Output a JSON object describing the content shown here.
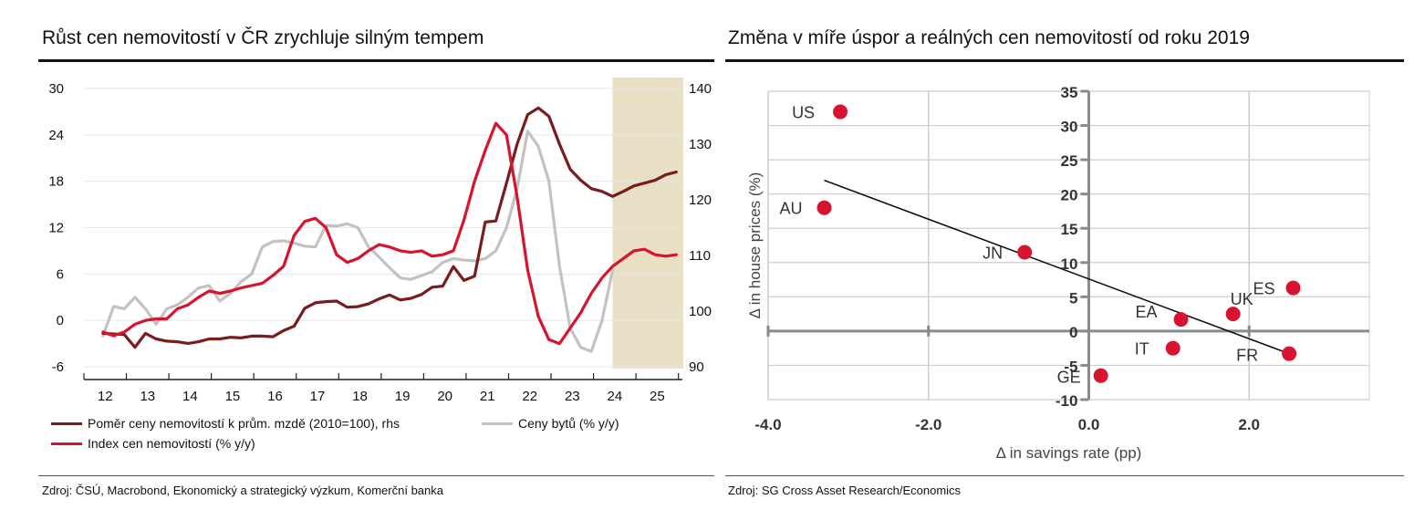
{
  "left": {
    "title": "Růst cen nemovitostí v ČR zrychluje silným tempem",
    "source": "Zdroj: ČSÚ, Macrobond, Ekonomický a strategický výzkum, Komerční banka"
  },
  "right": {
    "title": "Změna v míře úspor a reálných cen nemovitostí od roku 2019",
    "source": "Zdroj: SG Cross Asset Research/Economics"
  },
  "colors": {
    "ratio": "#7b1c1c",
    "flats": "#c4c1c0",
    "index": "#d7132f",
    "forecast": "#e9dfc5",
    "dot": "#d7132f",
    "grid": "#cccccc",
    "axis": "#8a8a8a"
  },
  "chart_data": [
    {
      "type": "line",
      "title": "Růst cen nemovitostí v ČR zrychluje silným tempem",
      "x_ticks": [
        "12",
        "13",
        "14",
        "15",
        "16",
        "17",
        "18",
        "19",
        "20",
        "21",
        "22",
        "23",
        "24",
        "25"
      ],
      "ylim_left": [
        -6,
        30
      ],
      "yticks_left": [
        -6,
        0,
        6,
        12,
        18,
        24,
        30
      ],
      "ylim_right": [
        90,
        140
      ],
      "yticks_right": [
        90,
        100,
        110,
        120,
        130,
        140
      ],
      "forecast_band_start": 2024.0,
      "series": [
        {
          "name": "Poměr ceny nemovitostí k prům. mzdě (2010=100), rhs",
          "axis": "right",
          "x": [
            2012.0,
            2012.5,
            2012.75,
            2013.0,
            2013.25,
            2013.5,
            2013.75,
            2014.0,
            2014.25,
            2014.5,
            2014.75,
            2015.0,
            2015.25,
            2015.5,
            2015.75,
            2016.0,
            2016.25,
            2016.5,
            2016.75,
            2017.0,
            2017.25,
            2017.5,
            2017.75,
            2018.0,
            2018.25,
            2018.5,
            2018.75,
            2019.0,
            2019.25,
            2019.5,
            2019.75,
            2020.0,
            2020.25,
            2020.5,
            2020.75,
            2021.0,
            2021.25,
            2021.5,
            2021.75,
            2022.0,
            2022.25,
            2022.5,
            2022.75,
            2023.0,
            2023.25,
            2023.5,
            2023.75,
            2024.0,
            2024.25,
            2024.5,
            2024.75,
            2025.0,
            2025.25,
            2025.5
          ],
          "values": [
            96.0,
            95.8,
            93.5,
            96.0,
            95.0,
            94.6,
            94.5,
            94.2,
            94.5,
            95.0,
            95.0,
            95.3,
            95.2,
            95.5,
            95.5,
            95.4,
            96.5,
            97.3,
            100.5,
            101.5,
            101.7,
            101.8,
            100.7,
            100.8,
            101.3,
            102.2,
            102.9,
            102.0,
            102.3,
            103.0,
            104.3,
            104.5,
            108.0,
            105.5,
            106.3,
            116.0,
            116.2,
            123.0,
            130.0,
            135.3,
            136.5,
            135.0,
            130.0,
            125.5,
            123.5,
            122.0,
            121.5,
            120.6,
            121.5,
            122.5,
            123.0,
            123.5,
            124.5,
            125.0
          ]
        },
        {
          "name": "Ceny bytů (% y/y)",
          "axis": "left",
          "x": [
            2012.0,
            2012.25,
            2012.5,
            2012.75,
            2013.0,
            2013.25,
            2013.5,
            2013.75,
            2014.0,
            2014.25,
            2014.5,
            2014.75,
            2015.0,
            2015.25,
            2015.5,
            2015.75,
            2016.0,
            2016.25,
            2016.5,
            2016.75,
            2017.0,
            2017.25,
            2017.5,
            2017.75,
            2018.0,
            2018.25,
            2018.5,
            2018.75,
            2019.0,
            2019.25,
            2019.5,
            2019.75,
            2020.0,
            2020.25,
            2020.5,
            2020.75,
            2021.0,
            2021.25,
            2021.5,
            2021.75,
            2022.0,
            2022.25,
            2022.5,
            2022.75,
            2023.0,
            2023.25,
            2023.5,
            2023.75,
            2024.0
          ],
          "values": [
            -2.0,
            1.8,
            1.5,
            3.0,
            1.5,
            -0.5,
            1.5,
            2.0,
            3.0,
            4.2,
            4.5,
            2.5,
            3.5,
            5.0,
            6.0,
            9.5,
            10.2,
            10.3,
            10.0,
            9.6,
            9.5,
            12.3,
            12.2,
            12.5,
            12.0,
            9.5,
            8.2,
            6.8,
            5.5,
            5.3,
            5.8,
            6.3,
            7.5,
            8.0,
            7.8,
            7.7,
            8.0,
            9.0,
            12.0,
            17.0,
            24.5,
            22.5,
            18.0,
            7.0,
            -1.0,
            -3.5,
            -4.0,
            0.0,
            6.5
          ]
        },
        {
          "name": "Index cen nemovitostí (% y/y)",
          "axis": "left",
          "x": [
            2012.0,
            2012.25,
            2012.5,
            2012.75,
            2013.0,
            2013.25,
            2013.5,
            2013.75,
            2014.0,
            2014.25,
            2014.5,
            2014.75,
            2015.0,
            2015.25,
            2015.5,
            2015.75,
            2016.0,
            2016.25,
            2016.5,
            2016.75,
            2017.0,
            2017.25,
            2017.5,
            2017.75,
            2018.0,
            2018.25,
            2018.5,
            2018.75,
            2019.0,
            2019.25,
            2019.5,
            2019.75,
            2020.0,
            2020.25,
            2020.5,
            2020.75,
            2021.0,
            2021.25,
            2021.5,
            2021.75,
            2022.0,
            2022.25,
            2022.5,
            2022.75,
            2023.0,
            2023.25,
            2023.5,
            2023.75,
            2024.0,
            2024.25,
            2024.5,
            2024.75,
            2025.0,
            2025.25,
            2025.5
          ],
          "values": [
            -1.5,
            -2.0,
            -1.5,
            -0.5,
            0.0,
            0.2,
            0.2,
            1.5,
            2.0,
            3.0,
            3.8,
            3.5,
            3.8,
            4.2,
            4.5,
            4.8,
            5.8,
            7.0,
            11.0,
            12.8,
            13.2,
            12.0,
            8.5,
            7.5,
            8.0,
            9.0,
            9.8,
            9.5,
            9.0,
            8.8,
            9.0,
            8.3,
            8.5,
            9.0,
            13.0,
            18.0,
            22.0,
            25.5,
            24.0,
            16.0,
            6.5,
            0.5,
            -2.5,
            -3.0,
            -1.0,
            1.0,
            3.5,
            5.5,
            7.0,
            8.0,
            9.0,
            9.2,
            8.5,
            8.3,
            8.5
          ]
        }
      ]
    },
    {
      "type": "scatter",
      "title": "Změna v míře úspor a reálných cen nemovitostí od roku 2019",
      "xlabel": "Δ in savings rate (pp)",
      "ylabel": "Δ in house prices (%)",
      "xlim": [
        -4.0,
        3.5
      ],
      "ylim": [
        -10,
        35
      ],
      "xticks": [
        "-4.0",
        "-2.0",
        "0.0",
        "2.0"
      ],
      "yticks": [
        "35",
        "30",
        "25",
        "20",
        "15",
        "10",
        "5",
        "0",
        "-5",
        "-10"
      ],
      "points": [
        {
          "label": "US",
          "x": -3.1,
          "y": 32.0
        },
        {
          "label": "AU",
          "x": -3.3,
          "y": 18.0
        },
        {
          "label": "JN",
          "x": -0.8,
          "y": 11.5
        },
        {
          "label": "ES",
          "x": 2.55,
          "y": 6.3
        },
        {
          "label": "UK",
          "x": 1.8,
          "y": 2.5
        },
        {
          "label": "EA",
          "x": 1.15,
          "y": 1.7
        },
        {
          "label": "IT",
          "x": 1.05,
          "y": -2.5
        },
        {
          "label": "FR",
          "x": 2.5,
          "y": -3.3
        },
        {
          "label": "GE",
          "x": 0.15,
          "y": -6.5
        }
      ],
      "trendline": {
        "x": [
          -3.3,
          2.5
        ],
        "y": [
          22.0,
          -3.3
        ]
      }
    }
  ]
}
